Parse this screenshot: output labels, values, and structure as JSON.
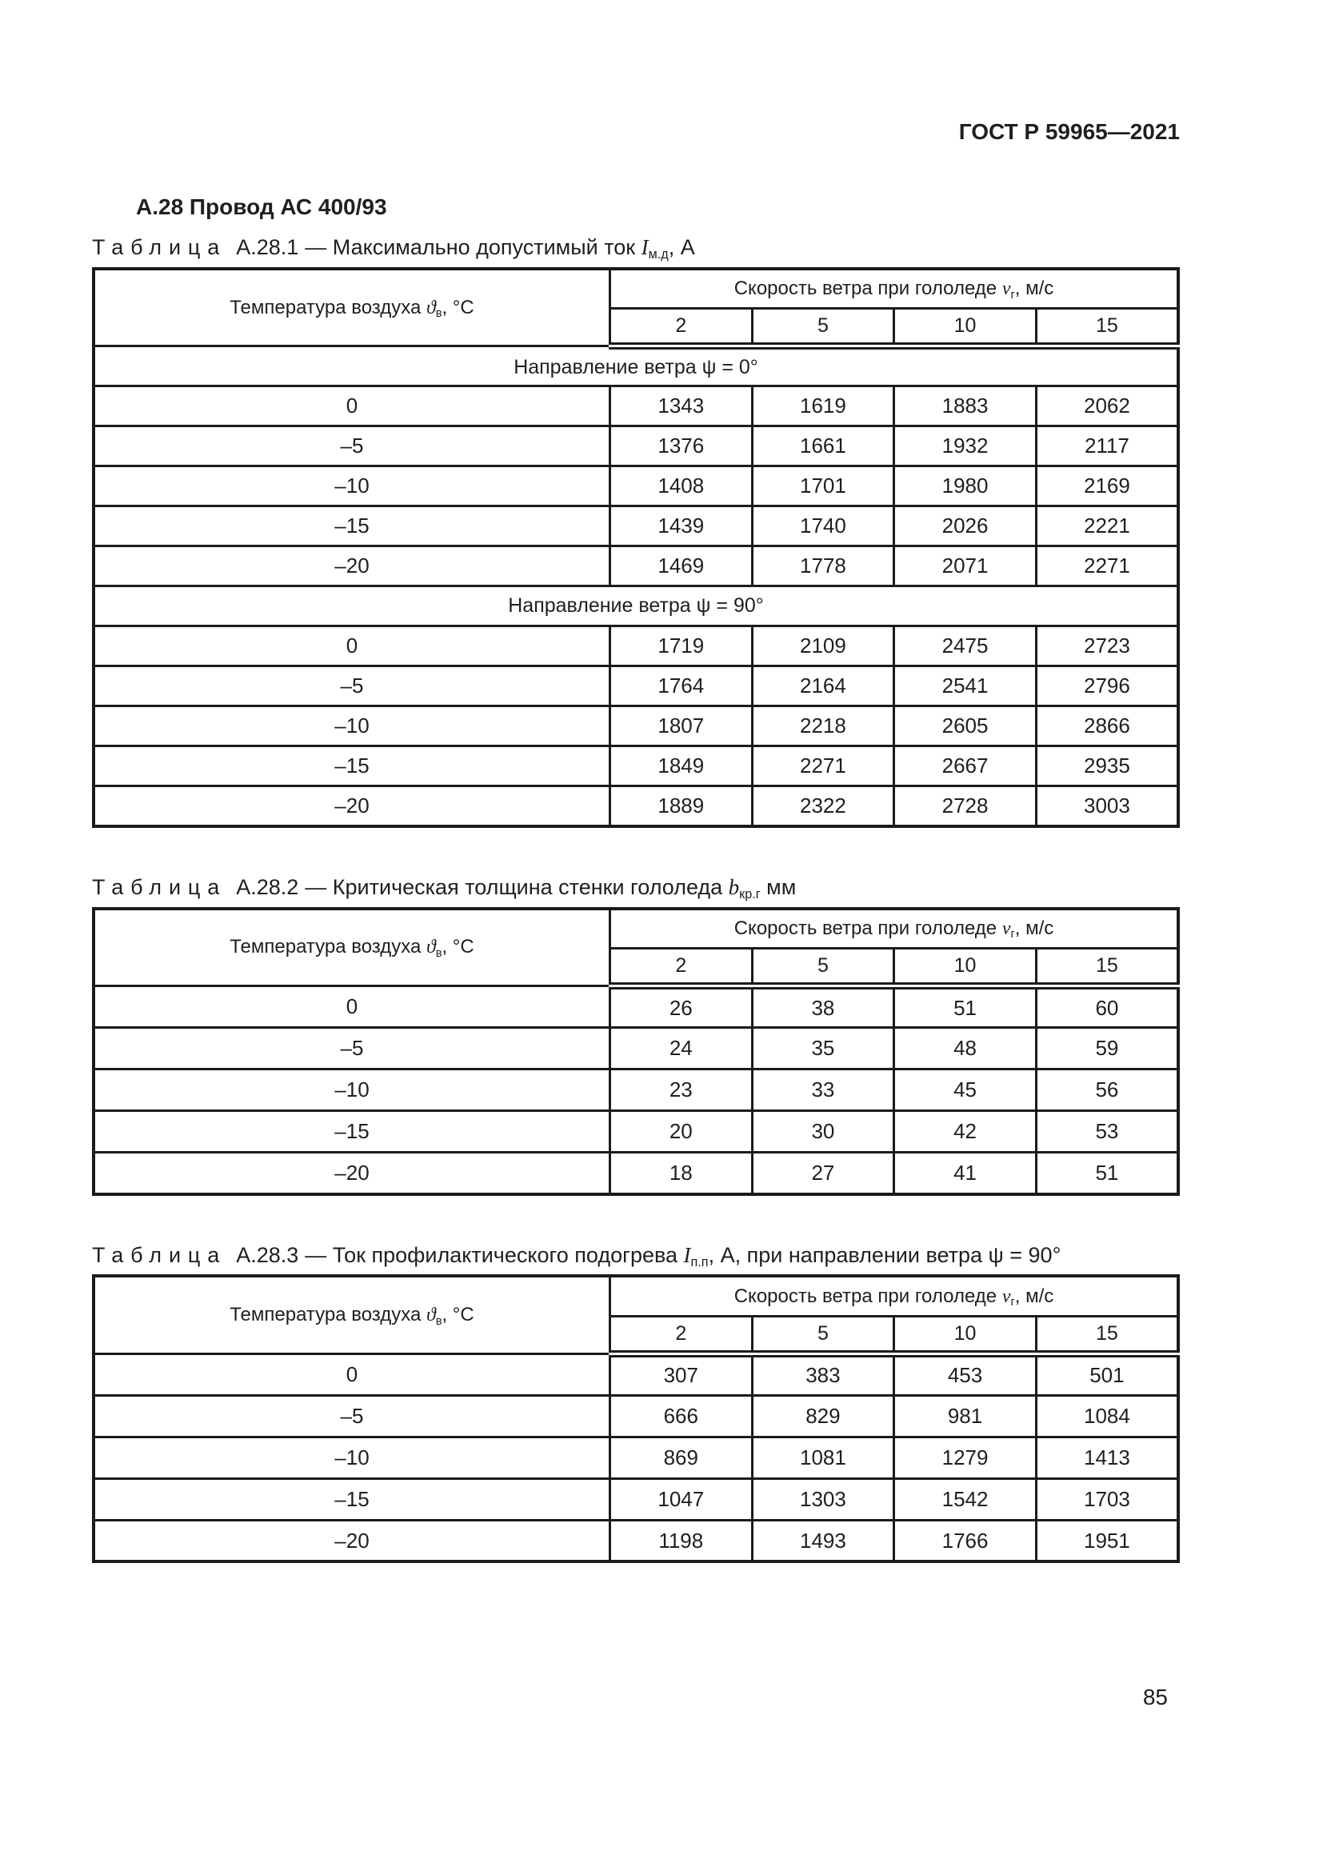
{
  "page": {
    "doc_number": "ГОСТ Р 59965—2021",
    "section_heading": "А.28  Провод АС 400/93",
    "page_number": "85"
  },
  "table_header": {
    "temp_label": "Температура воздуха ",
    "temp_var": "ϑ",
    "temp_sub": "в",
    "temp_after": ", °С",
    "speed_label": "Скорость ветра при гололеде ",
    "speed_var": "v",
    "speed_sub": "г",
    "speed_after": ", м/с",
    "speed_columns": [
      "2",
      "5",
      "10",
      "15"
    ]
  },
  "tables": [
    {
      "caption": {
        "word": "Таблица",
        "number": "А.28.1",
        "before": "— Максимально допустимый ток ",
        "var": "I",
        "sub": "м.д",
        "after": ", А"
      },
      "sections": [
        {
          "title": "Направление ветра ψ = 0°",
          "rows": [
            [
              "0",
              "1343",
              "1619",
              "1883",
              "2062"
            ],
            [
              "–5",
              "1376",
              "1661",
              "1932",
              "2117"
            ],
            [
              "–10",
              "1408",
              "1701",
              "1980",
              "2169"
            ],
            [
              "–15",
              "1439",
              "1740",
              "2026",
              "2221"
            ],
            [
              "–20",
              "1469",
              "1778",
              "2071",
              "2271"
            ]
          ]
        },
        {
          "title": "Направление ветра ψ = 90°",
          "rows": [
            [
              "0",
              "1719",
              "2109",
              "2475",
              "2723"
            ],
            [
              "–5",
              "1764",
              "2164",
              "2541",
              "2796"
            ],
            [
              "–10",
              "1807",
              "2218",
              "2605",
              "2866"
            ],
            [
              "–15",
              "1849",
              "2271",
              "2667",
              "2935"
            ],
            [
              "–20",
              "1889",
              "2322",
              "2728",
              "3003"
            ]
          ]
        }
      ]
    },
    {
      "caption": {
        "word": "Таблица",
        "number": "А.28.2",
        "before": "— Критическая толщина стенки гололеда ",
        "var": "b",
        "sub": "кр.г",
        "after": " мм"
      },
      "sections": [
        {
          "title": "",
          "rows": [
            [
              "0",
              "26",
              "38",
              "51",
              "60"
            ],
            [
              "–5",
              "24",
              "35",
              "48",
              "59"
            ],
            [
              "–10",
              "23",
              "33",
              "45",
              "56"
            ],
            [
              "–15",
              "20",
              "30",
              "42",
              "53"
            ],
            [
              "–20",
              "18",
              "27",
              "41",
              "51"
            ]
          ]
        }
      ]
    },
    {
      "caption": {
        "word": "Таблица",
        "number": "А.28.3",
        "before": "— Ток профилактического подогрева ",
        "var": "I",
        "sub": "п.п",
        "after": ", А, при направлении ветра ψ = 90°"
      },
      "sections": [
        {
          "title": "",
          "rows": [
            [
              "0",
              "307",
              "383",
              "453",
              "501"
            ],
            [
              "–5",
              "666",
              "829",
              "981",
              "1084"
            ],
            [
              "–10",
              "869",
              "1081",
              "1279",
              "1413"
            ],
            [
              "–15",
              "1047",
              "1303",
              "1542",
              "1703"
            ],
            [
              "–20",
              "1198",
              "1493",
              "1766",
              "1951"
            ]
          ]
        }
      ]
    }
  ]
}
